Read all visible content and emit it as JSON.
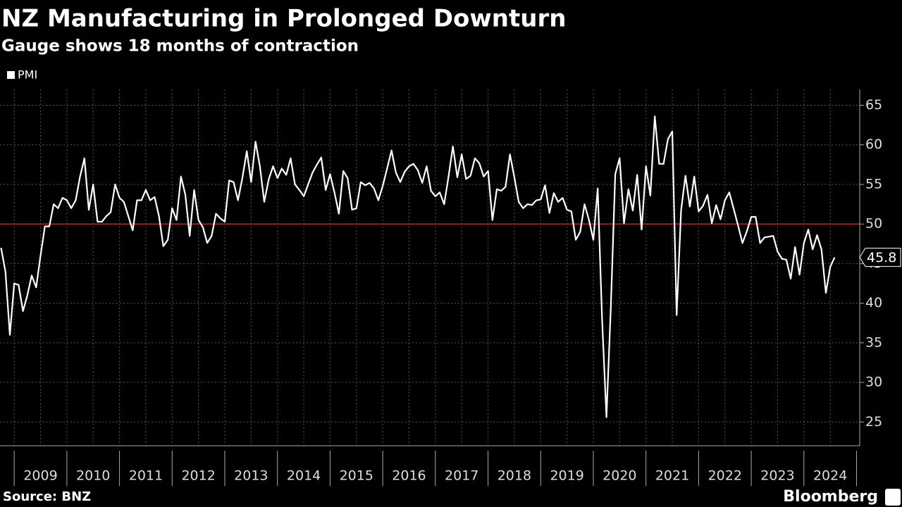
{
  "chart_data": {
    "type": "line",
    "title": "NZ Manufacturing in Prolonged Downturn",
    "subtitle": "Gauge shows 18 months of contraction",
    "source": "Source: BNZ",
    "brand": "Bloomberg",
    "series": [
      {
        "name": "PMI",
        "color": "#ffffff",
        "x": [
          2008.75,
          2008.833,
          2008.917,
          2009,
          2009.083,
          2009.167,
          2009.25,
          2009.333,
          2009.417,
          2009.5,
          2009.583,
          2009.667,
          2009.75,
          2009.833,
          2009.917,
          2010,
          2010.083,
          2010.167,
          2010.25,
          2010.333,
          2010.417,
          2010.5,
          2010.583,
          2010.667,
          2010.75,
          2010.833,
          2010.917,
          2011,
          2011.083,
          2011.167,
          2011.25,
          2011.333,
          2011.417,
          2011.5,
          2011.583,
          2011.667,
          2011.75,
          2011.833,
          2011.917,
          2012,
          2012.083,
          2012.167,
          2012.25,
          2012.333,
          2012.417,
          2012.5,
          2012.583,
          2012.667,
          2012.75,
          2012.833,
          2012.917,
          2013,
          2013.083,
          2013.167,
          2013.25,
          2013.333,
          2013.417,
          2013.5,
          2013.583,
          2013.667,
          2013.75,
          2013.833,
          2013.917,
          2014,
          2014.083,
          2014.167,
          2014.25,
          2014.333,
          2014.417,
          2014.5,
          2014.583,
          2014.667,
          2014.75,
          2014.833,
          2014.917,
          2015,
          2015.083,
          2015.167,
          2015.25,
          2015.333,
          2015.417,
          2015.5,
          2015.583,
          2015.667,
          2015.75,
          2015.833,
          2015.917,
          2016,
          2016.083,
          2016.167,
          2016.25,
          2016.333,
          2016.417,
          2016.5,
          2016.583,
          2016.667,
          2016.75,
          2016.833,
          2016.917,
          2017,
          2017.083,
          2017.167,
          2017.25,
          2017.333,
          2017.417,
          2017.5,
          2017.583,
          2017.667,
          2017.75,
          2017.833,
          2017.917,
          2018,
          2018.083,
          2018.167,
          2018.25,
          2018.333,
          2018.417,
          2018.5,
          2018.583,
          2018.667,
          2018.75,
          2018.833,
          2018.917,
          2019,
          2019.083,
          2019.167,
          2019.25,
          2019.333,
          2019.417,
          2019.5,
          2019.583,
          2019.667,
          2019.75,
          2019.833,
          2019.917,
          2020,
          2020.083,
          2020.167,
          2020.25,
          2020.333,
          2020.417,
          2020.5,
          2020.583,
          2020.667,
          2020.75,
          2020.833,
          2020.917,
          2021,
          2021.083,
          2021.167,
          2021.25,
          2021.333,
          2021.417,
          2021.5,
          2021.583,
          2021.667,
          2021.75,
          2021.833,
          2021.917,
          2022,
          2022.083,
          2022.167,
          2022.25,
          2022.333,
          2022.417,
          2022.5,
          2022.583,
          2022.667,
          2022.75,
          2022.833,
          2022.917,
          2023,
          2023.083,
          2023.167,
          2023.25,
          2023.333,
          2023.417,
          2023.5,
          2023.583,
          2023.667,
          2023.75,
          2023.833,
          2023.917,
          2024,
          2024.083,
          2024.167,
          2024.25,
          2024.333,
          2024.417,
          2024.5,
          2024.583
        ],
        "values": [
          47,
          44,
          36,
          42.5,
          42.3,
          39,
          41,
          43.5,
          42,
          46,
          49.7,
          49.7,
          52.5,
          52,
          53.3,
          53,
          52,
          53,
          56,
          58.3,
          51.8,
          55,
          50.3,
          50.3,
          51,
          51.5,
          55,
          53.3,
          52.8,
          51,
          49.2,
          53,
          53,
          54.3,
          53,
          53.4,
          51,
          47.2,
          48,
          52,
          50.5,
          56,
          53.7,
          48.5,
          54.3,
          50.5,
          49.6,
          47.6,
          48.5,
          51.3,
          50.7,
          50.3,
          55.5,
          55.3,
          53,
          55.8,
          59.2,
          55.3,
          60.4,
          57.3,
          52.8,
          55.6,
          57.3,
          55.8,
          57,
          56.2,
          58.3,
          55,
          54.3,
          53.5,
          55,
          56.5,
          57.5,
          58.4,
          54.3,
          56.3,
          54,
          51.3,
          56.7,
          55.8,
          51.8,
          52,
          55.3,
          54.9,
          55.2,
          54.5,
          53,
          54.8,
          57,
          59.3,
          56.5,
          55.3,
          56.6,
          57.3,
          57.6,
          56.8,
          55.2,
          57.3,
          54.2,
          53.5,
          54,
          52.5,
          56,
          59.8,
          55.9,
          58.8,
          55.7,
          56.1,
          58.3,
          57.7,
          56,
          56.7,
          50.5,
          54.4,
          54.2,
          54.7,
          58.8,
          55.9,
          52.8,
          52,
          52.5,
          52.4,
          53,
          53.1,
          54.9,
          51.4,
          53.9,
          52.8,
          53.3,
          51.8,
          51.6,
          48,
          49,
          52.5,
          50.5,
          48,
          54.5,
          38,
          25.6,
          39.5,
          56.3,
          58.3,
          50.1,
          54.4,
          51.7,
          56.2,
          49.3,
          57.3,
          53.6,
          63.6,
          57.6,
          57.6,
          60.7,
          61.7,
          38.5,
          51.7,
          56.1,
          52.2,
          56,
          51.6,
          52.3,
          53.7,
          50.1,
          52.4,
          50.6,
          53,
          54,
          51.9,
          49.8,
          47.6,
          49.1,
          50.9,
          50.9,
          47.6,
          48.3,
          48.4,
          48.5,
          46.5,
          45.6,
          45.5,
          43.1,
          47.1,
          43.6,
          47.6,
          49.3,
          46.8,
          48.6,
          46.8,
          41.3,
          44.6,
          45.8
        ]
      }
    ],
    "xlim": [
      2008.73,
      2025.06
    ],
    "xticks": [
      {
        "value": 2009.5,
        "label": "2009"
      },
      {
        "value": 2010.5,
        "label": "2010"
      },
      {
        "value": 2011.5,
        "label": "2011"
      },
      {
        "value": 2012.5,
        "label": "2012"
      },
      {
        "value": 2013.5,
        "label": "2013"
      },
      {
        "value": 2014.5,
        "label": "2014"
      },
      {
        "value": 2015.5,
        "label": "2015"
      },
      {
        "value": 2016.5,
        "label": "2016"
      },
      {
        "value": 2017.5,
        "label": "2017"
      },
      {
        "value": 2018.5,
        "label": "2018"
      },
      {
        "value": 2019.5,
        "label": "2019"
      },
      {
        "value": 2020.5,
        "label": "2020"
      },
      {
        "value": 2021.5,
        "label": "2021"
      },
      {
        "value": 2022.5,
        "label": "2022"
      },
      {
        "value": 2023.5,
        "label": "2023"
      },
      {
        "value": 2024.5,
        "label": "2024"
      }
    ],
    "ylim": [
      22,
      67
    ],
    "yticks": [
      25,
      30,
      35,
      40,
      45,
      50,
      55,
      60,
      65
    ],
    "reference_line": {
      "value": 50,
      "color": "#e0303a"
    },
    "grid": true,
    "legend": "top-left"
  }
}
